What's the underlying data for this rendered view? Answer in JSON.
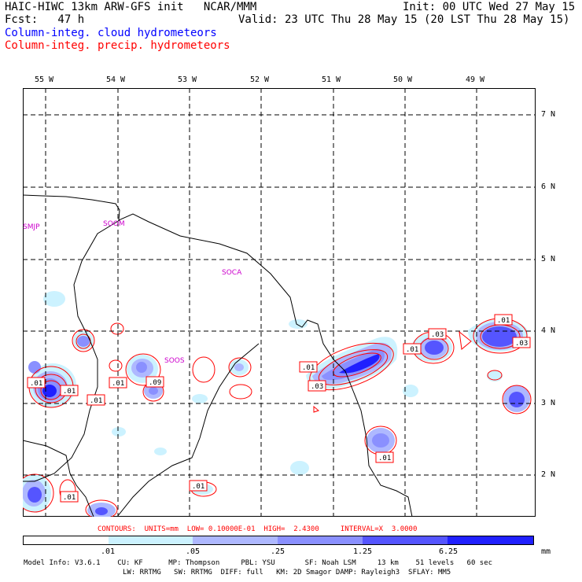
{
  "header": {
    "line1_left": "HAIC-HIWC 13km ARW-GFS init   NCAR/MMM",
    "line1_right": "Init: 00 UTC Wed 27 May 15",
    "line2_left": "Fcst:   47 h",
    "line2_right": "Valid: 23 UTC Thu 28 May 15 (20 LST Thu 28 May 15)",
    "field1": "Column-integ. cloud hydrometeors",
    "field2": "Column-integ. precip. hydrometeors"
  },
  "axes": {
    "lon_labels": [
      "55 W",
      "54 W",
      "53 W",
      "52 W",
      "51 W",
      "50 W",
      "49 W"
    ],
    "lat_labels": [
      "7 N",
      "6 N",
      "5 N",
      "4 N",
      "3 N",
      "2 N"
    ]
  },
  "stations": [
    "SMJP",
    "SOOM",
    "SOCA",
    "SOOS"
  ],
  "contour_labels": [
    ".01",
    ".03",
    ".01",
    ".01",
    ".09",
    ".01",
    ".01",
    ".03",
    ".01",
    ".01",
    ".03",
    ".01",
    ".03",
    ".01",
    ".01",
    ".01",
    ".01"
  ],
  "contours_info": {
    "text": "CONTOURS:  UNITS=mm  LOW= 0.10000E-01  HIGH=  2.4300     INTERVAL=X  3.0000"
  },
  "legend": {
    "ticks": [
      ".01",
      ".05",
      ".25",
      "1.25",
      "6.25"
    ],
    "units": "mm",
    "colors": [
      "#ffffff",
      "#ccf2ff",
      "#aeb8ff",
      "#8a90ff",
      "#5555ff",
      "#2020ff"
    ]
  },
  "model_info": {
    "line1": "Model Info: V3.6.1    CU: KF      MP: Thompson     PBL: YSU       SF: Noah LSM     13 km    51 levels   60 sec",
    "line2": "LW: RRTMG   SW: RRTMG  DIFF: full   KM: 2D Smagor DAMP: Rayleigh3  SFLAY: MM5"
  }
}
